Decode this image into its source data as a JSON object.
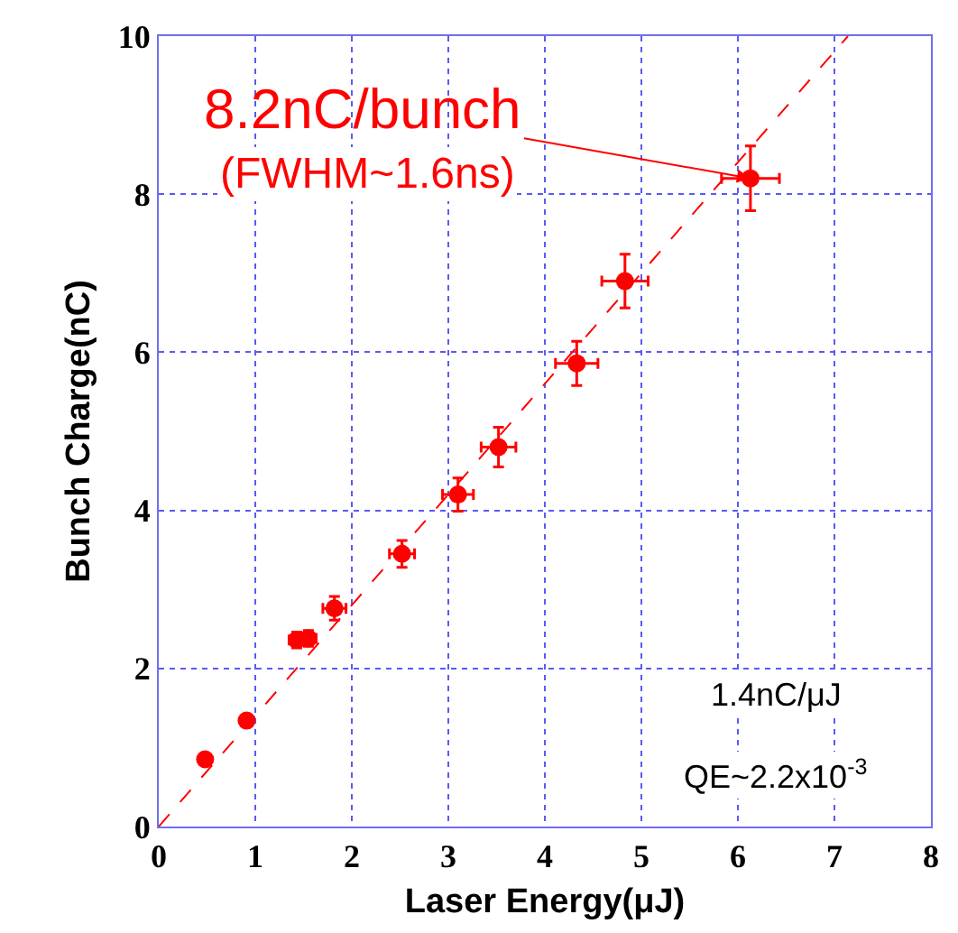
{
  "chart_data": {
    "type": "scatter",
    "xlabel": "Laser Energy(μJ)",
    "ylabel": "Bunch Charge(nC)",
    "xlim": [
      0,
      8
    ],
    "xticks": [
      0,
      1,
      2,
      3,
      4,
      5,
      6,
      7,
      8
    ],
    "ylim": [
      0,
      10
    ],
    "yticks": [
      0,
      2,
      4,
      6,
      8,
      10
    ],
    "grid": true,
    "series": [
      {
        "color": "#ff0000",
        "marker": "circle",
        "x": [
          0.48,
          0.91,
          1.43,
          1.55,
          1.82,
          2.52,
          3.1,
          3.52,
          4.33,
          4.83,
          6.13
        ],
        "values": [
          0.85,
          1.34,
          2.36,
          2.38,
          2.76,
          3.45,
          4.2,
          4.8,
          5.86,
          6.9,
          8.2
        ],
        "errors": [
          null,
          null,
          0.1,
          0.1,
          0.15,
          0.17,
          0.21,
          0.25,
          0.28,
          0.34,
          0.41
        ],
        "xerrors": [
          null,
          null,
          0.08,
          0.08,
          0.12,
          0.13,
          0.16,
          0.18,
          0.22,
          0.24,
          0.3
        ]
      },
      {
        "type": "line",
        "color": "#ff0000",
        "line_style": "dashed",
        "x": [
          0,
          7.14
        ],
        "values": [
          0,
          10
        ]
      }
    ],
    "annotations": [
      {
        "text": "8.2nC/bunch",
        "x": 6.13,
        "y": 8.2
      },
      "(FWHM~1.6ns)",
      "1.4nC/μJ",
      "QE~2.2x10$^{-3}$"
    ]
  }
}
